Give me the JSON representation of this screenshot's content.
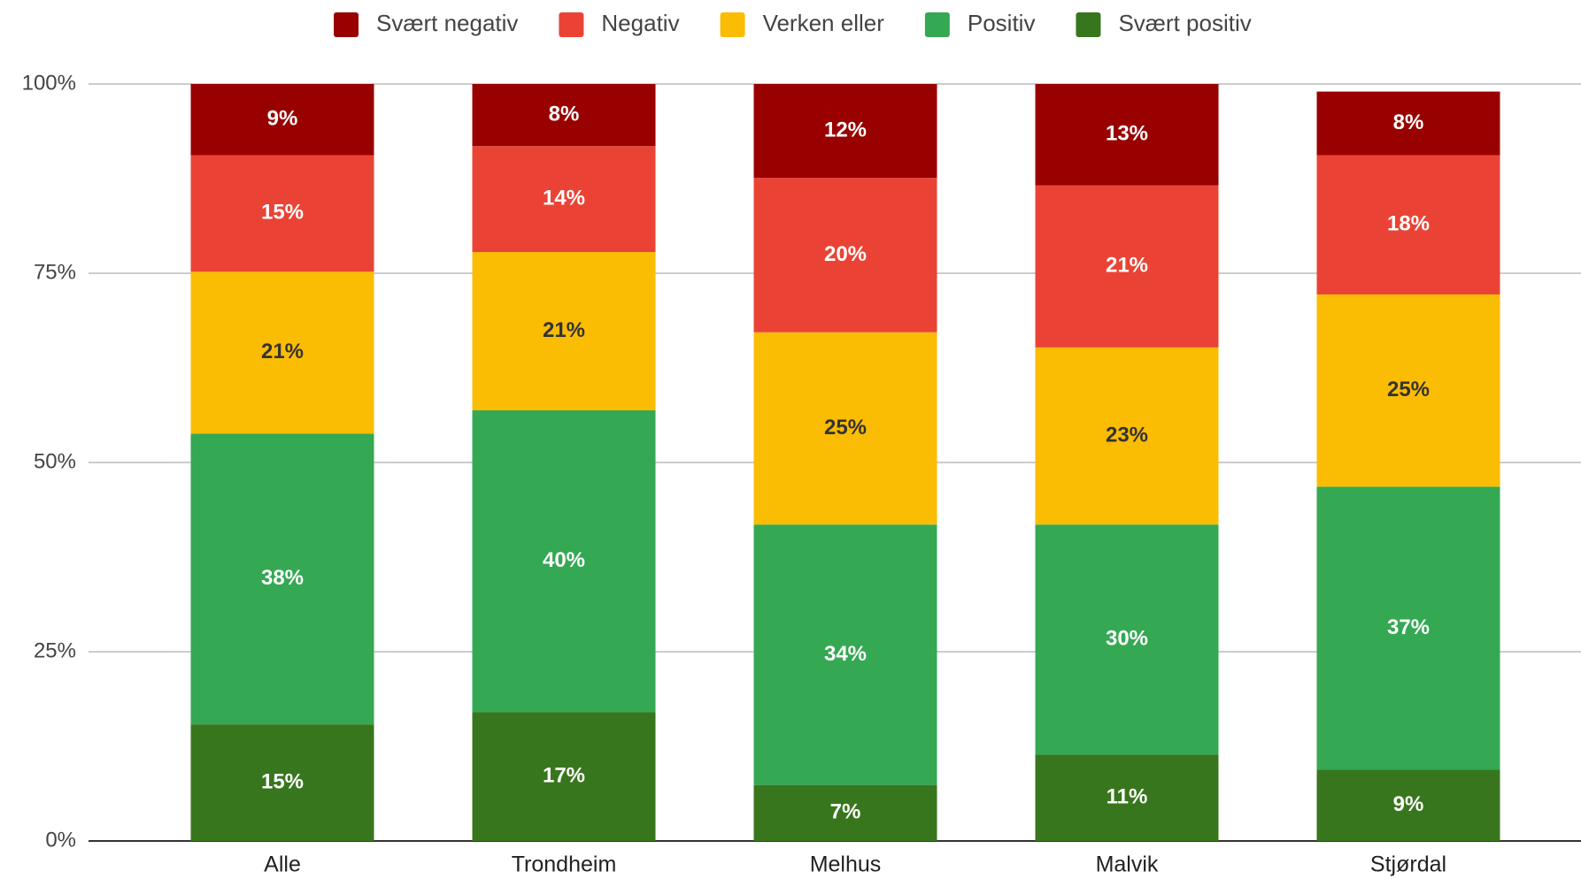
{
  "chart_data": {
    "type": "stacked_bar",
    "categories": [
      "Alle",
      "Trondheim",
      "Melhus",
      "Malvik",
      "Stjørdal"
    ],
    "series": [
      {
        "name": "Svært negativ",
        "color": "#990000",
        "values": [
          9.4,
          8.2,
          12.4,
          13.4,
          8.4
        ],
        "value_labels": [
          "9%",
          "8%",
          "12%",
          "13%",
          "8%"
        ]
      },
      {
        "name": "Negativ",
        "color": "#ea4335",
        "values": [
          15.4,
          14.0,
          20.4,
          21.4,
          18.4
        ],
        "value_labels": [
          "15%",
          "14%",
          "20%",
          "21%",
          "18%"
        ]
      },
      {
        "name": "Verken eller",
        "color": "#fbbc04",
        "values": [
          21.4,
          20.9,
          25.4,
          23.4,
          25.4
        ],
        "value_labels": [
          "21%",
          "21%",
          "25%",
          "23%",
          "25%"
        ]
      },
      {
        "name": "Positiv",
        "color": "#34a853",
        "values": [
          38.4,
          39.9,
          34.4,
          30.4,
          37.4
        ],
        "value_labels": [
          "38%",
          "40%",
          "34%",
          "30%",
          "37%"
        ]
      },
      {
        "name": "Svært positiv",
        "color": "#38761d",
        "values": [
          15.4,
          17.0,
          7.4,
          11.4,
          9.4
        ],
        "value_labels": [
          "15%",
          "17%",
          "7%",
          "11%",
          "9%"
        ]
      }
    ],
    "ylim": [
      0,
      100
    ],
    "yticks": [
      {
        "value": 0,
        "label": "0%"
      },
      {
        "value": 25,
        "label": "25%"
      },
      {
        "value": 50,
        "label": "50%"
      },
      {
        "value": 75,
        "label": "75%"
      },
      {
        "value": 100,
        "label": "100%"
      }
    ],
    "grid": true,
    "legend": "top"
  }
}
